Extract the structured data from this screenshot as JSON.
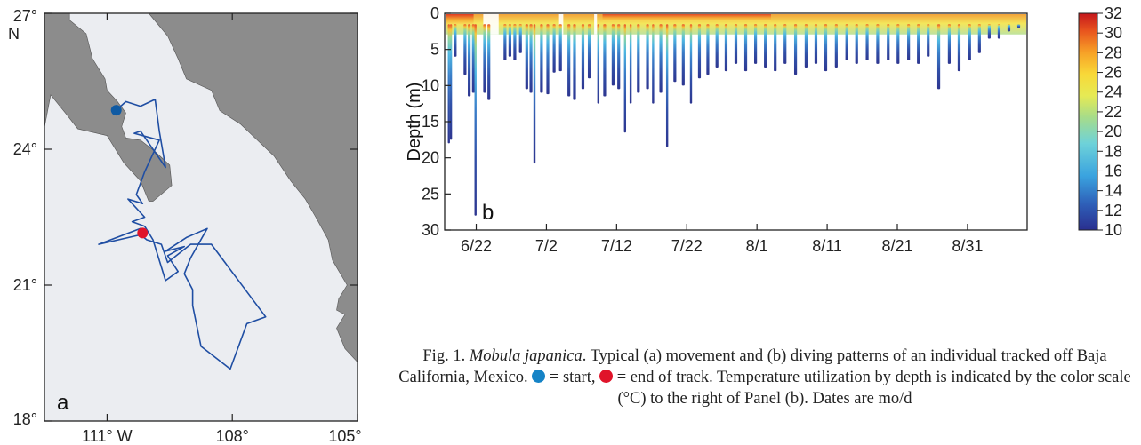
{
  "panel_a": {
    "label": "a",
    "lat_labels": [
      "27°",
      "24°",
      "21°",
      "18°"
    ],
    "lat_values": [
      27,
      24,
      21,
      18
    ],
    "lat_unit": "N",
    "lon_labels": [
      "111° W",
      "108°",
      "105°"
    ],
    "lon_values": [
      -111,
      -108,
      -105
    ],
    "land_color": "#8c8c8c",
    "sea_color": "#ebedf1",
    "track_color": "#1f4ea3",
    "start_color": "#0f5aa3",
    "end_color": "#e0142a",
    "start_point": [
      -110.78,
      24.86
    ],
    "end_point": [
      -110.15,
      22.15
    ],
    "track": [
      [
        -110.78,
        24.86
      ],
      [
        -110.55,
        25.05
      ],
      [
        -110.2,
        24.95
      ],
      [
        -109.85,
        25.1
      ],
      [
        -109.75,
        24.4
      ],
      [
        -109.6,
        23.6
      ],
      [
        -110.2,
        24.4
      ],
      [
        -110.35,
        24.35
      ],
      [
        -109.75,
        24.2
      ],
      [
        -110.1,
        23.5
      ],
      [
        -110.3,
        23.0
      ],
      [
        -110.15,
        22.8
      ],
      [
        -110.5,
        22.9
      ],
      [
        -110.1,
        22.5
      ],
      [
        -110.4,
        22.4
      ],
      [
        -110.1,
        22.3
      ],
      [
        -109.9,
        22.0
      ],
      [
        -109.6,
        21.1
      ],
      [
        -109.3,
        21.3
      ],
      [
        -109.55,
        21.65
      ],
      [
        -109.15,
        21.85
      ],
      [
        -109.6,
        21.75
      ],
      [
        -109.1,
        22.05
      ],
      [
        -108.6,
        22.25
      ],
      [
        -109.0,
        21.6
      ],
      [
        -109.15,
        21.25
      ],
      [
        -108.95,
        20.9
      ],
      [
        -108.95,
        20.55
      ],
      [
        -108.75,
        19.65
      ],
      [
        -108.05,
        19.15
      ],
      [
        -107.65,
        20.15
      ],
      [
        -107.2,
        20.3
      ],
      [
        -108.5,
        21.9
      ],
      [
        -109.0,
        21.9
      ],
      [
        -109.55,
        21.5
      ],
      [
        -109.7,
        21.9
      ],
      [
        -110.05,
        22.0
      ],
      [
        -110.25,
        22.15
      ],
      [
        -110.2,
        22.25
      ],
      [
        -111.2,
        21.9
      ],
      [
        -110.25,
        22.1
      ],
      [
        -110.15,
        22.15
      ]
    ],
    "baja_coast": [
      [
        -112.35,
        27.0
      ],
      [
        -111.9,
        27.0
      ],
      [
        -111.9,
        26.85
      ],
      [
        -111.5,
        26.55
      ],
      [
        -111.35,
        26.0
      ],
      [
        -111.05,
        25.55
      ],
      [
        -111.0,
        25.3
      ],
      [
        -110.75,
        25.05
      ],
      [
        -110.55,
        24.8
      ],
      [
        -110.65,
        24.5
      ],
      [
        -110.55,
        24.25
      ],
      [
        -110.2,
        24.2
      ],
      [
        -109.85,
        23.95
      ],
      [
        -109.5,
        23.65
      ],
      [
        -109.45,
        23.2
      ],
      [
        -109.9,
        22.85
      ],
      [
        -110.0,
        22.85
      ],
      [
        -110.2,
        23.3
      ],
      [
        -110.6,
        23.7
      ],
      [
        -111.0,
        24.3
      ],
      [
        -111.7,
        24.45
      ],
      [
        -112.0,
        24.8
      ],
      [
        -112.35,
        25.2
      ]
    ],
    "mainland_coast": [
      [
        -110.0,
        27.0
      ],
      [
        -109.55,
        26.5
      ],
      [
        -109.3,
        26.0
      ],
      [
        -109.1,
        25.55
      ],
      [
        -108.5,
        25.3
      ],
      [
        -108.3,
        24.85
      ],
      [
        -107.8,
        24.55
      ],
      [
        -107.4,
        24.2
      ],
      [
        -107.0,
        23.85
      ],
      [
        -106.6,
        23.3
      ],
      [
        -106.25,
        22.9
      ],
      [
        -106.0,
        22.5
      ],
      [
        -105.7,
        22.0
      ],
      [
        -105.6,
        21.55
      ],
      [
        -105.25,
        21.0
      ],
      [
        -105.45,
        20.7
      ],
      [
        -105.5,
        20.45
      ],
      [
        -105.3,
        20.35
      ],
      [
        -105.5,
        20.05
      ],
      [
        -105.3,
        19.6
      ],
      [
        -105.0,
        19.3
      ],
      [
        -105.0,
        27.0
      ]
    ]
  },
  "panel_b": {
    "chart_data": {
      "type": "heatmap",
      "label": "b",
      "ylabel": "Depth (m)",
      "ylim": [
        0,
        30
      ],
      "y_ticks": [
        0,
        5,
        10,
        15,
        20,
        25,
        30
      ],
      "x_tick_labels": [
        "6/22",
        "7/2",
        "7/12",
        "7/22",
        "8/1",
        "8/11",
        "8/21",
        "8/31"
      ],
      "x_tick_days": [
        0,
        10,
        20,
        30,
        40,
        50,
        60,
        70
      ],
      "x_range_days": [
        -4.5,
        78.5
      ],
      "colorbar_ticks": [
        32,
        30,
        28,
        26,
        24,
        22,
        20,
        18,
        16,
        14,
        12,
        10
      ],
      "colorbar_range": [
        10,
        32
      ],
      "dives": [
        {
          "day": -3.9,
          "max_depth": 18.0
        },
        {
          "day": -3.6,
          "max_depth": 17.5
        },
        {
          "day": -3.0,
          "max_depth": 6.0
        },
        {
          "day": -1.6,
          "max_depth": 8.5
        },
        {
          "day": -1.0,
          "max_depth": 11.5
        },
        {
          "day": -0.4,
          "max_depth": 11.0
        },
        {
          "day": -0.1,
          "max_depth": 28.0
        },
        {
          "day": 1.2,
          "max_depth": 11.0
        },
        {
          "day": 1.8,
          "max_depth": 12.0
        },
        {
          "day": 4.1,
          "max_depth": 6.5
        },
        {
          "day": 4.8,
          "max_depth": 6.0
        },
        {
          "day": 5.5,
          "max_depth": 6.5
        },
        {
          "day": 6.3,
          "max_depth": 5.5
        },
        {
          "day": 7.2,
          "max_depth": 10.5
        },
        {
          "day": 7.8,
          "max_depth": 11.0
        },
        {
          "day": 8.3,
          "max_depth": 20.8
        },
        {
          "day": 9.3,
          "max_depth": 11.0
        },
        {
          "day": 10.2,
          "max_depth": 11.2
        },
        {
          "day": 11.1,
          "max_depth": 8.2
        },
        {
          "day": 12.0,
          "max_depth": 8.0
        },
        {
          "day": 13.2,
          "max_depth": 11.5
        },
        {
          "day": 14.0,
          "max_depth": 12.0
        },
        {
          "day": 15.2,
          "max_depth": 10.5
        },
        {
          "day": 16.1,
          "max_depth": 9.0
        },
        {
          "day": 17.4,
          "max_depth": 12.5
        },
        {
          "day": 18.3,
          "max_depth": 11.5
        },
        {
          "day": 19.5,
          "max_depth": 10.0
        },
        {
          "day": 20.3,
          "max_depth": 10.5
        },
        {
          "day": 21.2,
          "max_depth": 16.5
        },
        {
          "day": 22.0,
          "max_depth": 12.5
        },
        {
          "day": 23.1,
          "max_depth": 11.0
        },
        {
          "day": 24.4,
          "max_depth": 10.5
        },
        {
          "day": 25.2,
          "max_depth": 12.5
        },
        {
          "day": 26.3,
          "max_depth": 11.0
        },
        {
          "day": 27.2,
          "max_depth": 18.5
        },
        {
          "day": 28.3,
          "max_depth": 9.5
        },
        {
          "day": 29.5,
          "max_depth": 10.0
        },
        {
          "day": 30.6,
          "max_depth": 12.5
        },
        {
          "day": 31.8,
          "max_depth": 9.0
        },
        {
          "day": 33.0,
          "max_depth": 8.5
        },
        {
          "day": 34.3,
          "max_depth": 7.5
        },
        {
          "day": 35.6,
          "max_depth": 8.0
        },
        {
          "day": 37.0,
          "max_depth": 7.0
        },
        {
          "day": 38.4,
          "max_depth": 8.0
        },
        {
          "day": 39.8,
          "max_depth": 7.0
        },
        {
          "day": 41.2,
          "max_depth": 7.5
        },
        {
          "day": 42.6,
          "max_depth": 8.0
        },
        {
          "day": 44.0,
          "max_depth": 7.0
        },
        {
          "day": 45.5,
          "max_depth": 8.5
        },
        {
          "day": 47.0,
          "max_depth": 7.5
        },
        {
          "day": 48.4,
          "max_depth": 7.0
        },
        {
          "day": 49.8,
          "max_depth": 8.0
        },
        {
          "day": 51.3,
          "max_depth": 7.5
        },
        {
          "day": 52.8,
          "max_depth": 6.5
        },
        {
          "day": 54.2,
          "max_depth": 7.0
        },
        {
          "day": 55.7,
          "max_depth": 6.5
        },
        {
          "day": 57.2,
          "max_depth": 7.0
        },
        {
          "day": 58.7,
          "max_depth": 6.5
        },
        {
          "day": 60.1,
          "max_depth": 7.0
        },
        {
          "day": 61.6,
          "max_depth": 6.5
        },
        {
          "day": 63.0,
          "max_depth": 7.0
        },
        {
          "day": 64.4,
          "max_depth": 6.0
        },
        {
          "day": 65.9,
          "max_depth": 10.5
        },
        {
          "day": 67.4,
          "max_depth": 7.0
        },
        {
          "day": 68.8,
          "max_depth": 8.0
        },
        {
          "day": 70.3,
          "max_depth": 6.5
        },
        {
          "day": 71.7,
          "max_depth": 5.5
        },
        {
          "day": 73.1,
          "max_depth": 3.5
        },
        {
          "day": 74.5,
          "max_depth": 3.5
        },
        {
          "day": 75.9,
          "max_depth": 2.5
        },
        {
          "day": 77.3,
          "max_depth": 2.0
        }
      ]
    }
  },
  "caption": {
    "part1": "Fig. 1. ",
    "species": "Mobula japanica",
    "part2": ". Typical (a) movement and (b) diving patterns of an individual tracked off Baja California, Mexico. ",
    "part3": " = start, ",
    "part4": " = end of track. Temperature utilization by depth is indicated by the color scale (°C) to the right of Panel (b). Dates are mo/d",
    "start_dot_color": "#1583c6",
    "end_dot_color": "#e0142a"
  }
}
